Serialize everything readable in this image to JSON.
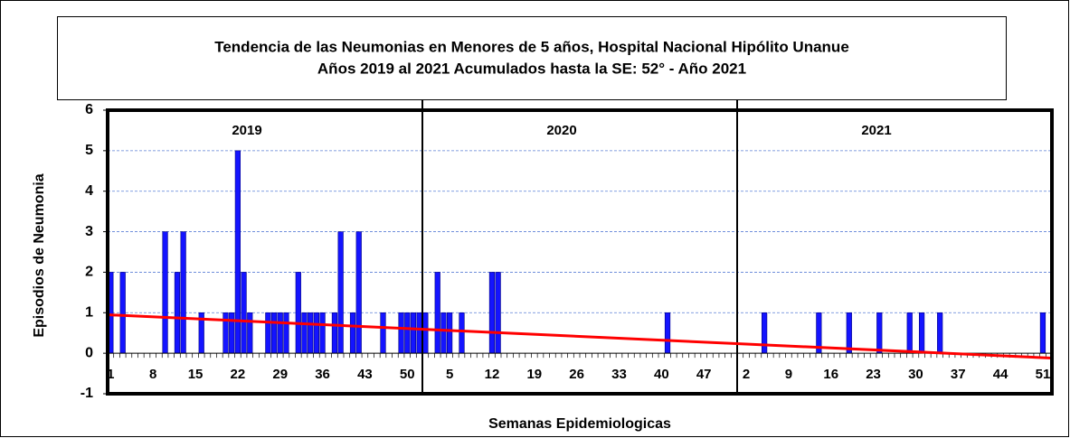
{
  "chart_data": {
    "type": "bar",
    "title": [
      "Tendencia de las Neumonias en Menores de 5 años, Hospital Nacional Hipólito Unanue",
      "Años 2019 al 2021 Acumulados hasta la SE: 52° - Año 2021"
    ],
    "y_label": "Episodios de Neumonia",
    "x_label": "Semanas Epidemiologicas",
    "years": [
      "2019",
      "2020",
      "2021"
    ],
    "categories": [
      "1",
      null,
      null,
      null,
      null,
      null,
      null,
      "8",
      null,
      null,
      null,
      null,
      null,
      null,
      "15",
      null,
      null,
      null,
      null,
      null,
      null,
      "22",
      null,
      null,
      null,
      null,
      null,
      null,
      "29",
      null,
      null,
      null,
      null,
      null,
      null,
      "36",
      null,
      null,
      null,
      null,
      null,
      null,
      "43",
      null,
      null,
      null,
      null,
      null,
      null,
      "50",
      null,
      null,
      null,
      null,
      null,
      null,
      "5",
      null,
      null,
      null,
      null,
      null,
      null,
      "12",
      null,
      null,
      null,
      null,
      null,
      null,
      "19",
      null,
      null,
      null,
      null,
      null,
      null,
      "26",
      null,
      null,
      null,
      null,
      null,
      null,
      "33",
      null,
      null,
      null,
      null,
      null,
      null,
      "40",
      null,
      null,
      null,
      null,
      null,
      null,
      "47",
      null,
      null,
      null,
      null,
      null,
      null,
      "2",
      null,
      null,
      null,
      null,
      null,
      null,
      "9",
      null,
      null,
      null,
      null,
      null,
      null,
      "16",
      null,
      null,
      null,
      null,
      null,
      null,
      "23",
      null,
      null,
      null,
      null,
      null,
      null,
      "30",
      null,
      null,
      null,
      null,
      null,
      null,
      "37",
      null,
      null,
      null,
      null,
      null,
      null,
      "44",
      null,
      null,
      null,
      null,
      null,
      null,
      "51",
      null
    ],
    "values": [
      2,
      0,
      2,
      0,
      0,
      0,
      0,
      0,
      0,
      3,
      0,
      2,
      3,
      0,
      0,
      1,
      0,
      0,
      0,
      1,
      1,
      5,
      2,
      1,
      0,
      0,
      1,
      1,
      1,
      1,
      0,
      2,
      1,
      1,
      1,
      1,
      0,
      1,
      3,
      0,
      1,
      3,
      0,
      0,
      0,
      1,
      0,
      0,
      1,
      1,
      1,
      1,
      1,
      0,
      2,
      1,
      1,
      0,
      1,
      0,
      0,
      0,
      0,
      2,
      2,
      0,
      0,
      0,
      0,
      0,
      0,
      0,
      0,
      0,
      0,
      0,
      0,
      0,
      0,
      0,
      0,
      0,
      0,
      0,
      0,
      0,
      0,
      0,
      0,
      0,
      0,
      0,
      1,
      0,
      0,
      0,
      0,
      0,
      0,
      0,
      0,
      0,
      0,
      0,
      0,
      0,
      0,
      0,
      1,
      0,
      0,
      0,
      0,
      0,
      0,
      0,
      0,
      1,
      0,
      0,
      0,
      0,
      1,
      0,
      0,
      0,
      0,
      1,
      0,
      0,
      0,
      0,
      1,
      0,
      1,
      0,
      0,
      1,
      0,
      0,
      0,
      0,
      0,
      0,
      0,
      0,
      0,
      0,
      0,
      0,
      0,
      0,
      0,
      0,
      1,
      0
    ],
    "color": "#1414ff",
    "trend": {
      "color": "#ff0000",
      "values": [
        0.95,
        -0.12
      ]
    },
    "ylim": [
      -1,
      6
    ],
    "yticks": [
      -1,
      0,
      1,
      2,
      3,
      4,
      5,
      6
    ],
    "grid": true
  }
}
